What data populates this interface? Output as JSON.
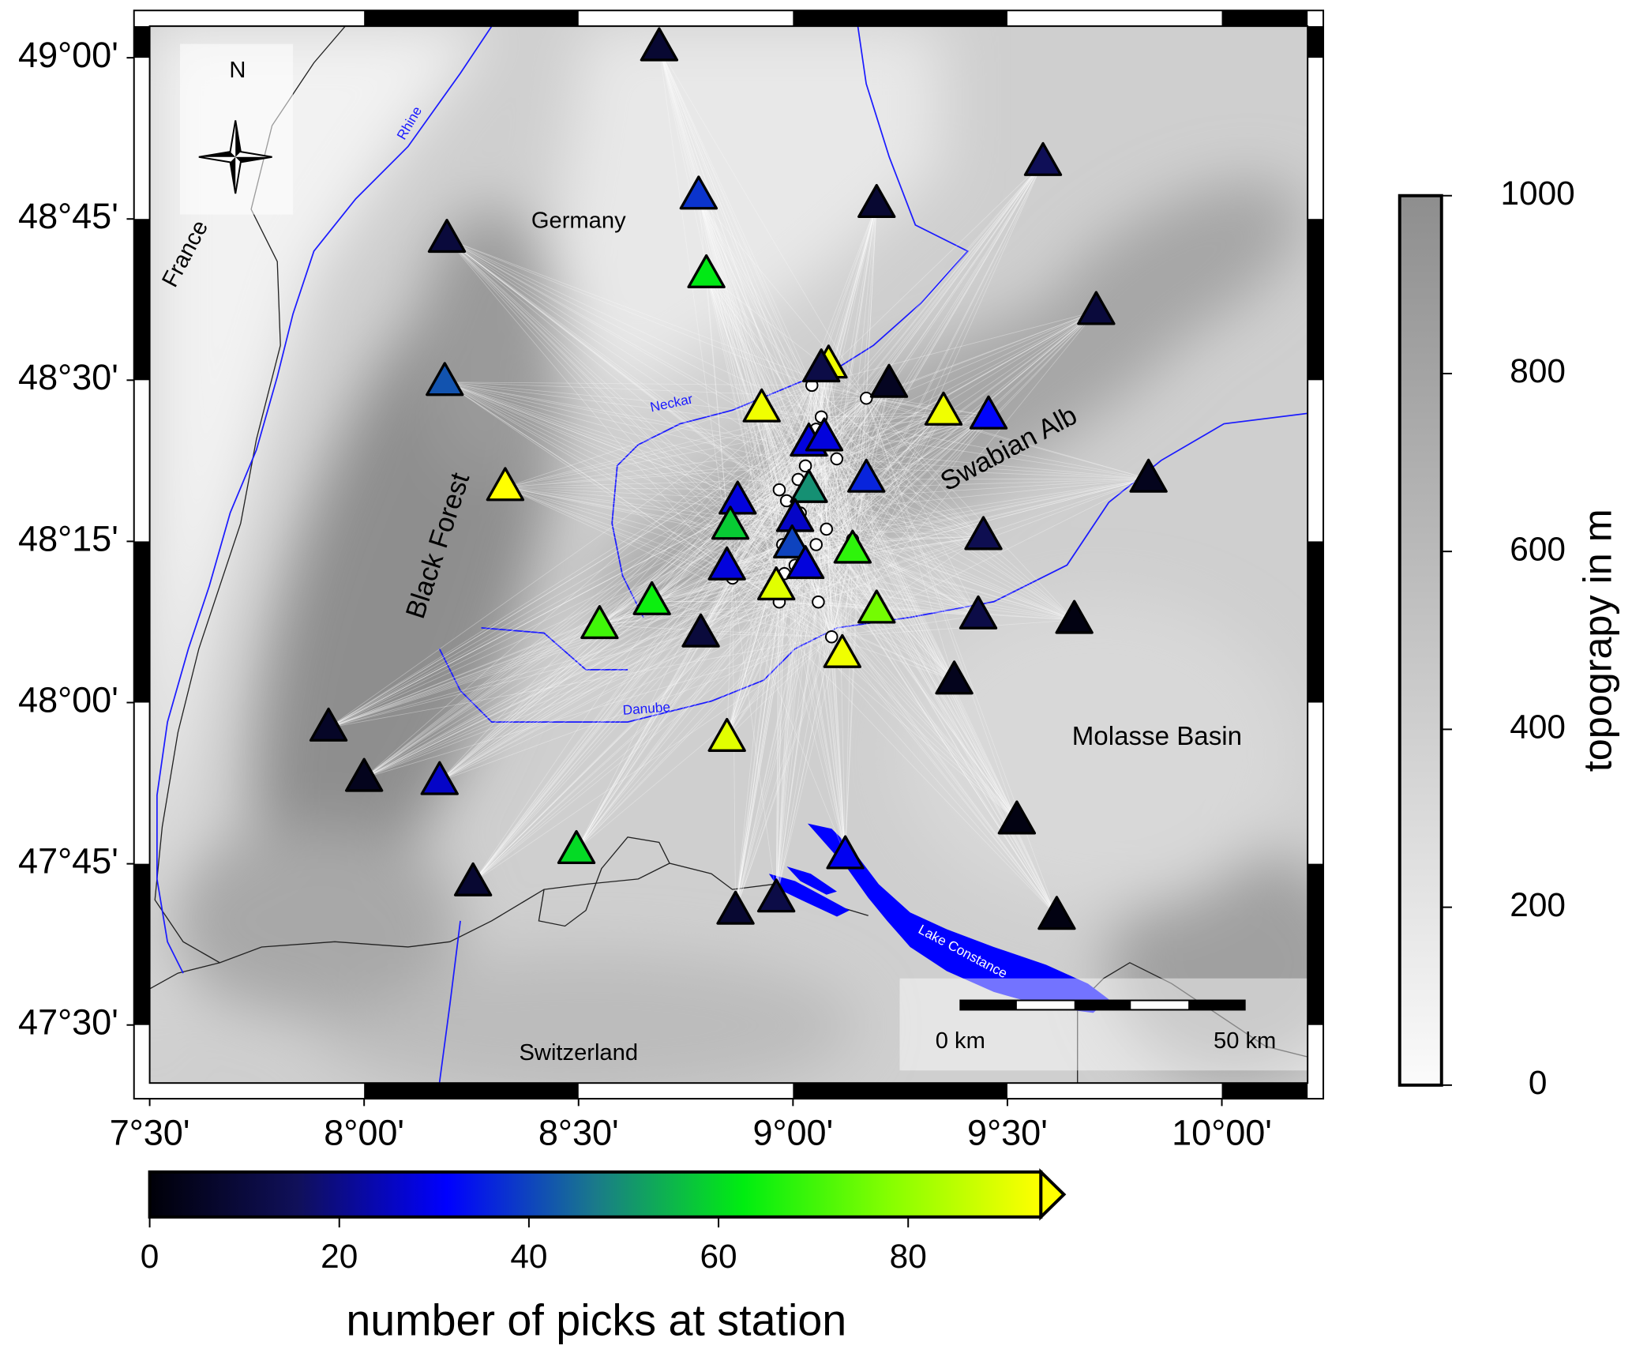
{
  "chart_data": {
    "type": "map",
    "xlim": [
      7.5,
      10.2
    ],
    "ylim": [
      47.41,
      49.049
    ],
    "xticks": [
      {
        "value": 7.5,
        "label": "7°30'"
      },
      {
        "value": 8,
        "label": "8°00'"
      },
      {
        "value": 8.5,
        "label": "8°30'"
      },
      {
        "value": 9,
        "label": "9°00'"
      },
      {
        "value": 9.5,
        "label": "9°30'"
      },
      {
        "value": 10,
        "label": "10°00'"
      }
    ],
    "yticks": [
      {
        "value": 47.5,
        "label": "47°30'"
      },
      {
        "value": 47.75,
        "label": "47°45'"
      },
      {
        "value": 48,
        "label": "48°00'"
      },
      {
        "value": 48.25,
        "label": "48°15'"
      },
      {
        "value": 48.5,
        "label": "48°30'"
      },
      {
        "value": 48.75,
        "label": "48°45'"
      },
      {
        "value": 49,
        "label": "49°00'"
      }
    ],
    "labels": {
      "north": "N",
      "germany": "Germany",
      "france": "France",
      "rhine": "Rhine",
      "neckar": "Neckar",
      "danube": "Danube",
      "black_forest": "Black Forest",
      "swabian_alb": "Swabian Alb",
      "molasse_basin": "Molasse Basin",
      "switzerland": "Switzerland",
      "lake_constance": "Lake Constance",
      "scale_start": "0 km",
      "scale_end": "50 km"
    },
    "topography_colorbar": {
      "label": "topograpy in m",
      "lim": [
        0,
        1000
      ],
      "ticks": [
        0,
        200,
        400,
        600,
        800,
        1000
      ],
      "colors": [
        "#fbfbfb",
        "#8e8e8e"
      ]
    },
    "picks_colorbar": {
      "label": "number of picks at station",
      "lim": [
        0,
        94
      ],
      "ticks": [
        0,
        20,
        40,
        60,
        80
      ],
      "colors": [
        "#000008",
        "#10105a",
        "#0000ff",
        "#1a7a8a",
        "#00ee10",
        "#88ff00",
        "#ffff00"
      ]
    },
    "stations": [
      {
        "lon": 8.688,
        "lat": 49.016,
        "picks": 8
      },
      {
        "lon": 9.583,
        "lat": 48.838,
        "picks": 15
      },
      {
        "lon": 8.78,
        "lat": 48.786,
        "picks": 38
      },
      {
        "lon": 9.195,
        "lat": 48.773,
        "picks": 8
      },
      {
        "lon": 8.193,
        "lat": 48.719,
        "picks": 10
      },
      {
        "lon": 8.798,
        "lat": 48.664,
        "picks": 62
      },
      {
        "lon": 9.707,
        "lat": 48.607,
        "picks": 10
      },
      {
        "lon": 8.188,
        "lat": 48.497,
        "picks": 42
      },
      {
        "lon": 9.083,
        "lat": 48.524,
        "picks": 92
      },
      {
        "lon": 9.066,
        "lat": 48.518,
        "picks": 12
      },
      {
        "lon": 9.224,
        "lat": 48.494,
        "picks": 5
      },
      {
        "lon": 8.927,
        "lat": 48.456,
        "picks": 92
      },
      {
        "lon": 9.351,
        "lat": 48.451,
        "picks": 92
      },
      {
        "lon": 9.456,
        "lat": 48.445,
        "picks": 32
      },
      {
        "lon": 9.037,
        "lat": 48.403,
        "picks": 28
      },
      {
        "lon": 9.073,
        "lat": 48.411,
        "picks": 28
      },
      {
        "lon": 9.171,
        "lat": 48.347,
        "picks": 36
      },
      {
        "lon": 8.329,
        "lat": 48.334,
        "picks": 94
      },
      {
        "lon": 9.829,
        "lat": 48.347,
        "picks": 4
      },
      {
        "lon": 9.037,
        "lat": 48.331,
        "picks": 50
      },
      {
        "lon": 8.871,
        "lat": 48.313,
        "picks": 28
      },
      {
        "lon": 9.005,
        "lat": 48.286,
        "picks": 26
      },
      {
        "lon": 8.854,
        "lat": 48.274,
        "picks": 58
      },
      {
        "lon": 8.998,
        "lat": 48.245,
        "picks": 40
      },
      {
        "lon": 9.444,
        "lat": 48.258,
        "picks": 14
      },
      {
        "lon": 9.139,
        "lat": 48.237,
        "picks": 68
      },
      {
        "lon": 8.846,
        "lat": 48.211,
        "picks": 28
      },
      {
        "lon": 9.029,
        "lat": 48.213,
        "picks": 28
      },
      {
        "lon": 8.961,
        "lat": 48.18,
        "picks": 90
      },
      {
        "lon": 8.671,
        "lat": 48.157,
        "picks": 64
      },
      {
        "lon": 9.195,
        "lat": 48.144,
        "picks": 76
      },
      {
        "lon": 8.549,
        "lat": 48.12,
        "picks": 70
      },
      {
        "lon": 9.432,
        "lat": 48.135,
        "picks": 12
      },
      {
        "lon": 9.656,
        "lat": 48.128,
        "picks": 2
      },
      {
        "lon": 8.785,
        "lat": 48.107,
        "picks": 10
      },
      {
        "lon": 9.115,
        "lat": 48.075,
        "picks": 92
      },
      {
        "lon": 9.376,
        "lat": 48.034,
        "picks": 4
      },
      {
        "lon": 7.917,
        "lat": 47.961,
        "picks": 6
      },
      {
        "lon": 8.0,
        "lat": 47.883,
        "picks": 4
      },
      {
        "lon": 8.176,
        "lat": 47.878,
        "picks": 26
      },
      {
        "lon": 8.846,
        "lat": 47.945,
        "picks": 90
      },
      {
        "lon": 9.522,
        "lat": 47.817,
        "picks": 2
      },
      {
        "lon": 8.495,
        "lat": 47.771,
        "picks": 60
      },
      {
        "lon": 9.122,
        "lat": 47.763,
        "picks": 30
      },
      {
        "lon": 8.254,
        "lat": 47.721,
        "picks": 8
      },
      {
        "lon": 8.961,
        "lat": 47.696,
        "picks": 12
      },
      {
        "lon": 8.866,
        "lat": 47.677,
        "picks": 8
      },
      {
        "lon": 9.615,
        "lat": 47.669,
        "picks": 2
      }
    ],
    "events": [
      {
        "lon": 9.044,
        "lat": 48.492
      },
      {
        "lon": 9.171,
        "lat": 48.472
      },
      {
        "lon": 9.066,
        "lat": 48.443
      },
      {
        "lon": 9.054,
        "lat": 48.424
      },
      {
        "lon": 9.041,
        "lat": 48.394
      },
      {
        "lon": 9.102,
        "lat": 48.378
      },
      {
        "lon": 8.968,
        "lat": 48.33
      },
      {
        "lon": 8.985,
        "lat": 48.313
      },
      {
        "lon": 9.012,
        "lat": 48.346
      },
      {
        "lon": 9.029,
        "lat": 48.367
      },
      {
        "lon": 9.017,
        "lat": 48.294
      },
      {
        "lon": 9.078,
        "lat": 48.269
      },
      {
        "lon": 8.976,
        "lat": 48.245
      },
      {
        "lon": 9.139,
        "lat": 48.253
      },
      {
        "lon": 9.005,
        "lat": 48.213
      },
      {
        "lon": 8.98,
        "lat": 48.2
      },
      {
        "lon": 8.968,
        "lat": 48.156
      },
      {
        "lon": 9.059,
        "lat": 48.156
      },
      {
        "lon": 9.09,
        "lat": 48.102
      },
      {
        "lon": 8.859,
        "lat": 48.193
      },
      {
        "lon": 9.151,
        "lat": 48.229
      },
      {
        "lon": 9.054,
        "lat": 48.245
      }
    ]
  }
}
